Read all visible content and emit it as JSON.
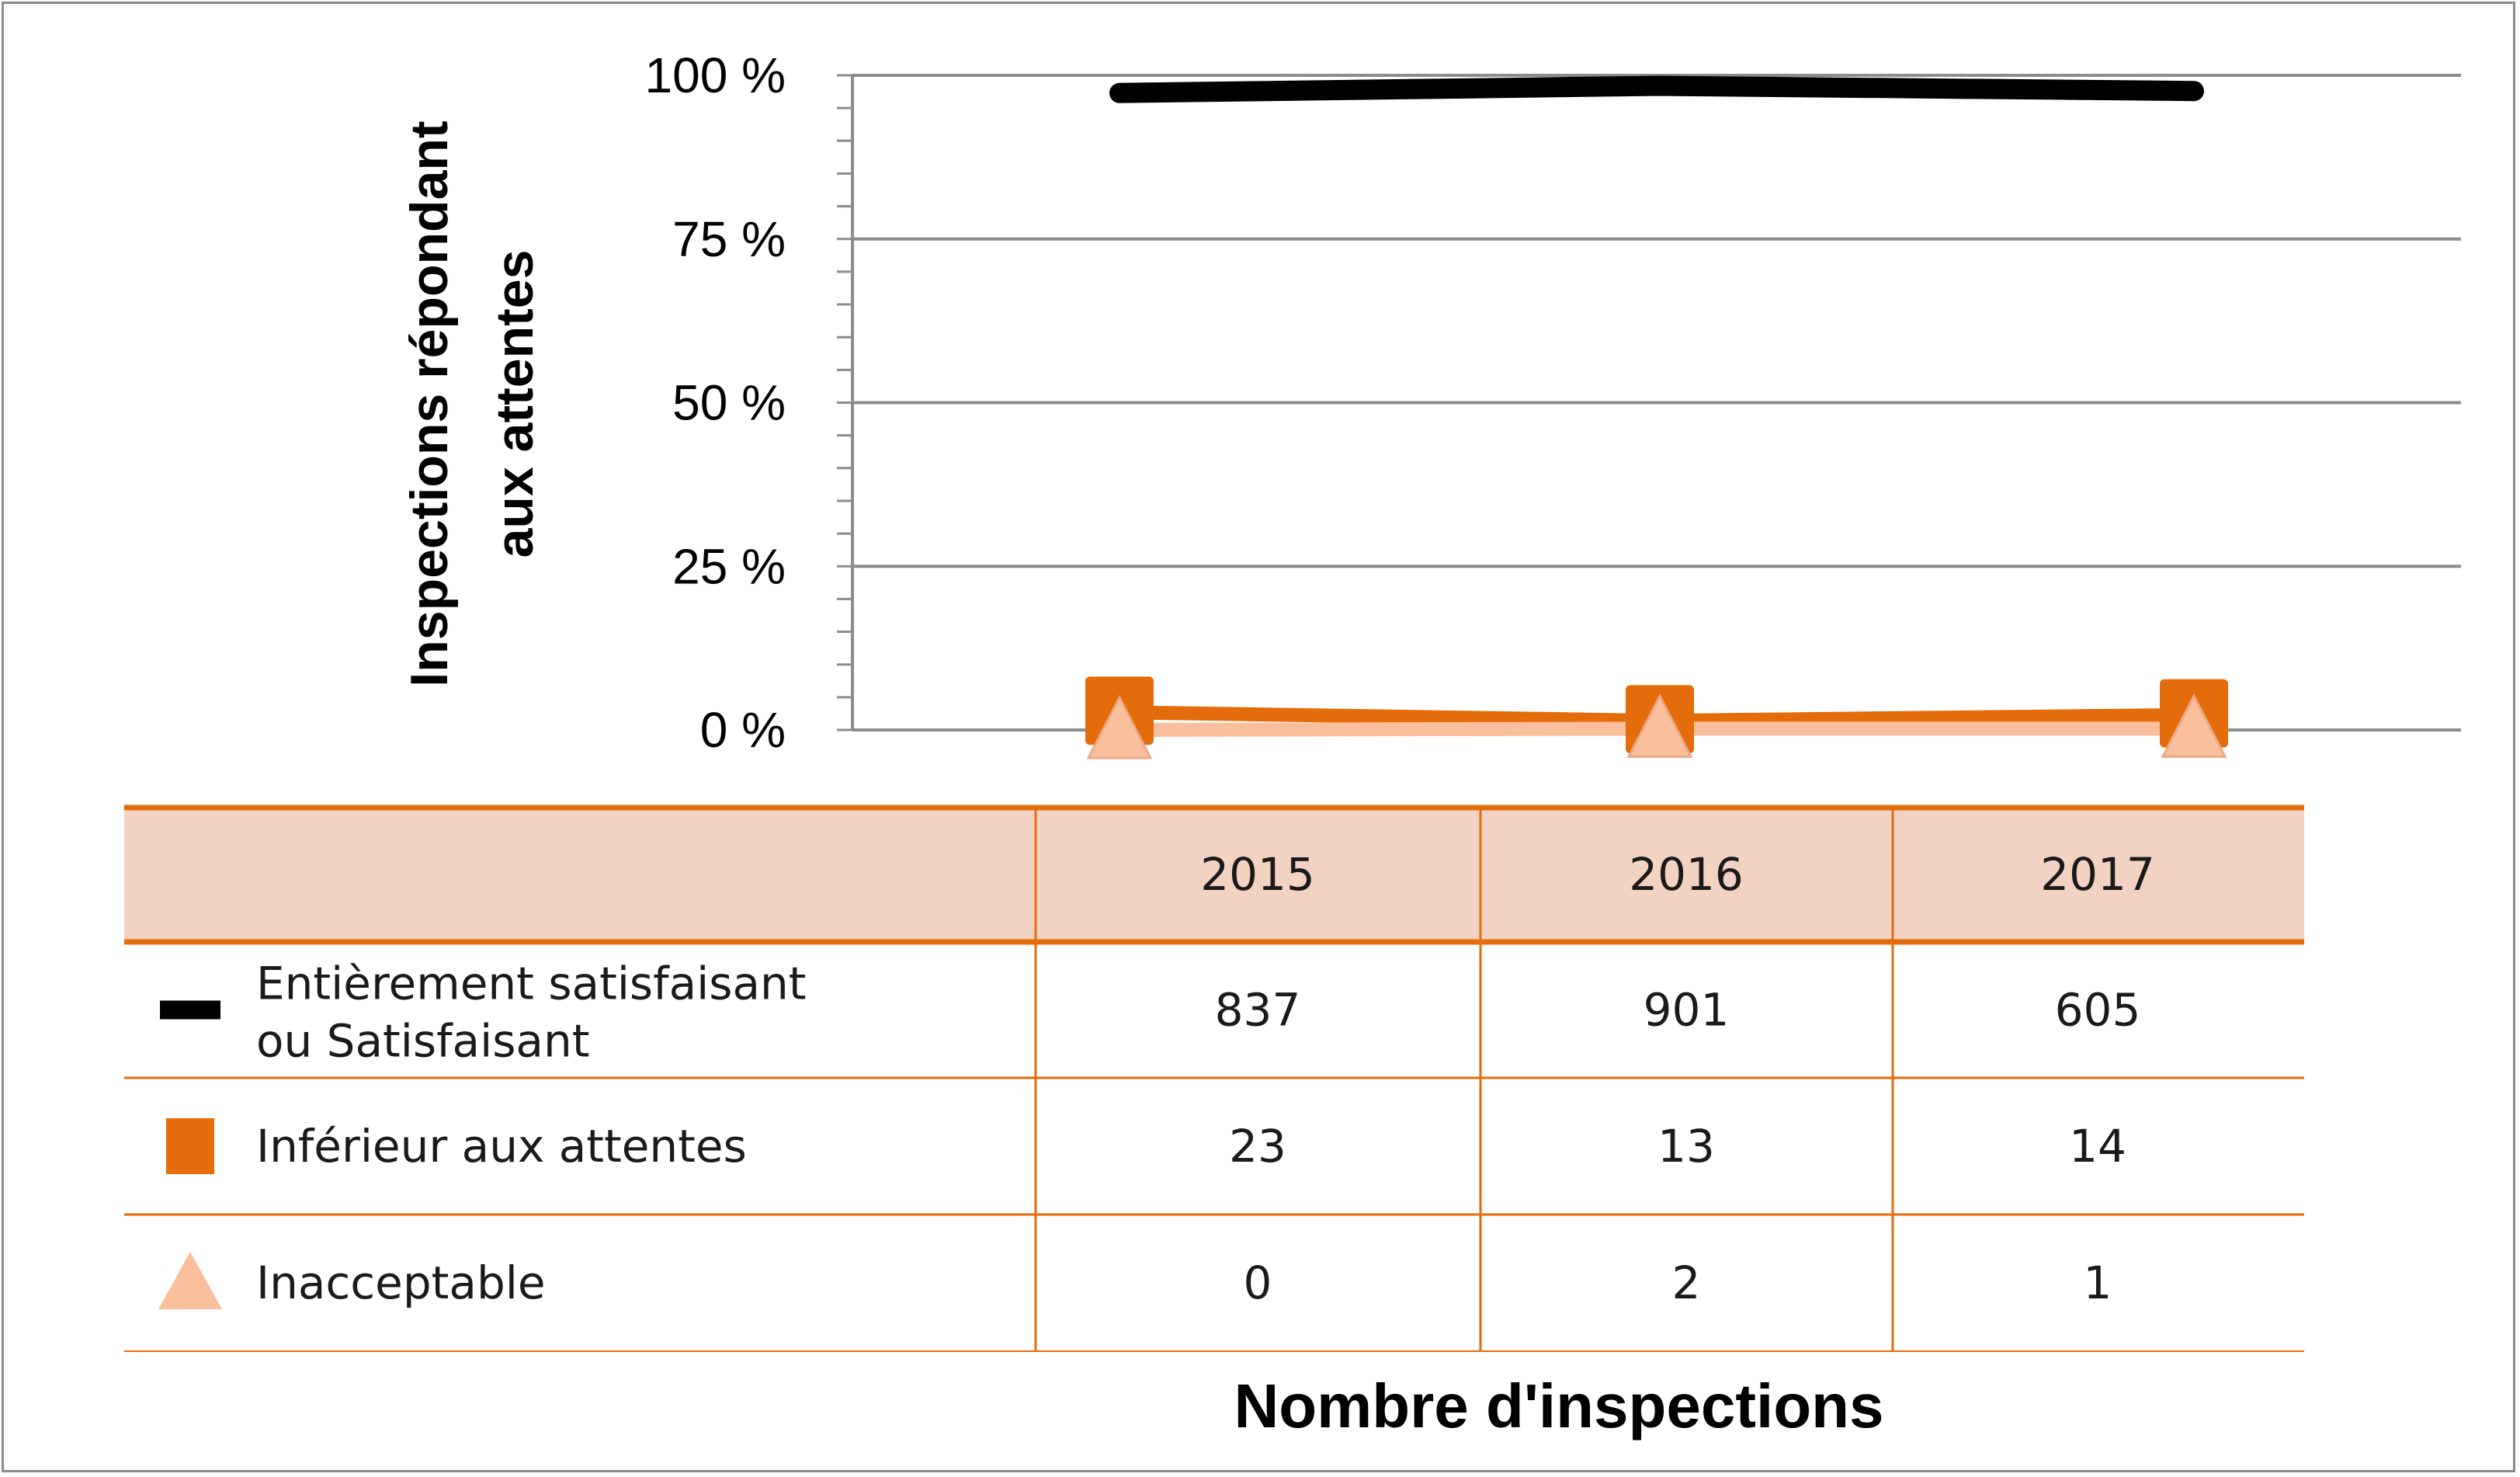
{
  "chart_data": {
    "type": "line",
    "categories": [
      "2015",
      "2016",
      "2017"
    ],
    "ylabel_line1": "Inspections répondant",
    "ylabel_line2": "aux attentes",
    "xlabel": "Nombre d'inspections",
    "ylim": [
      0,
      100
    ],
    "yticks": [
      {
        "value": 0,
        "label": "0 %"
      },
      {
        "value": 25,
        "label": "25 %"
      },
      {
        "value": 50,
        "label": "50 %"
      },
      {
        "value": 75,
        "label": "75 %"
      },
      {
        "value": 100,
        "label": "100 %"
      }
    ],
    "grid": true,
    "series": [
      {
        "name_line1": "Entièrement satisfaisant",
        "name_line2": "ou Satisfaisant",
        "marker": "dash",
        "color": "#000000",
        "counts": [
          "837",
          "901",
          "605"
        ],
        "values": [
          97.3,
          98.4,
          97.6
        ]
      },
      {
        "name_line1": "Inférieur aux attentes",
        "name_line2": "",
        "marker": "square",
        "color": "#e46c0a",
        "counts": [
          "23",
          "13",
          "14"
        ],
        "values": [
          2.7,
          1.4,
          2.3
        ]
      },
      {
        "name_line1": "Inacceptable",
        "name_line2": "",
        "marker": "triangle",
        "color": "#f9bf9c",
        "counts": [
          "0",
          "2",
          "1"
        ],
        "values": [
          0.0,
          0.2,
          0.2
        ]
      }
    ]
  }
}
